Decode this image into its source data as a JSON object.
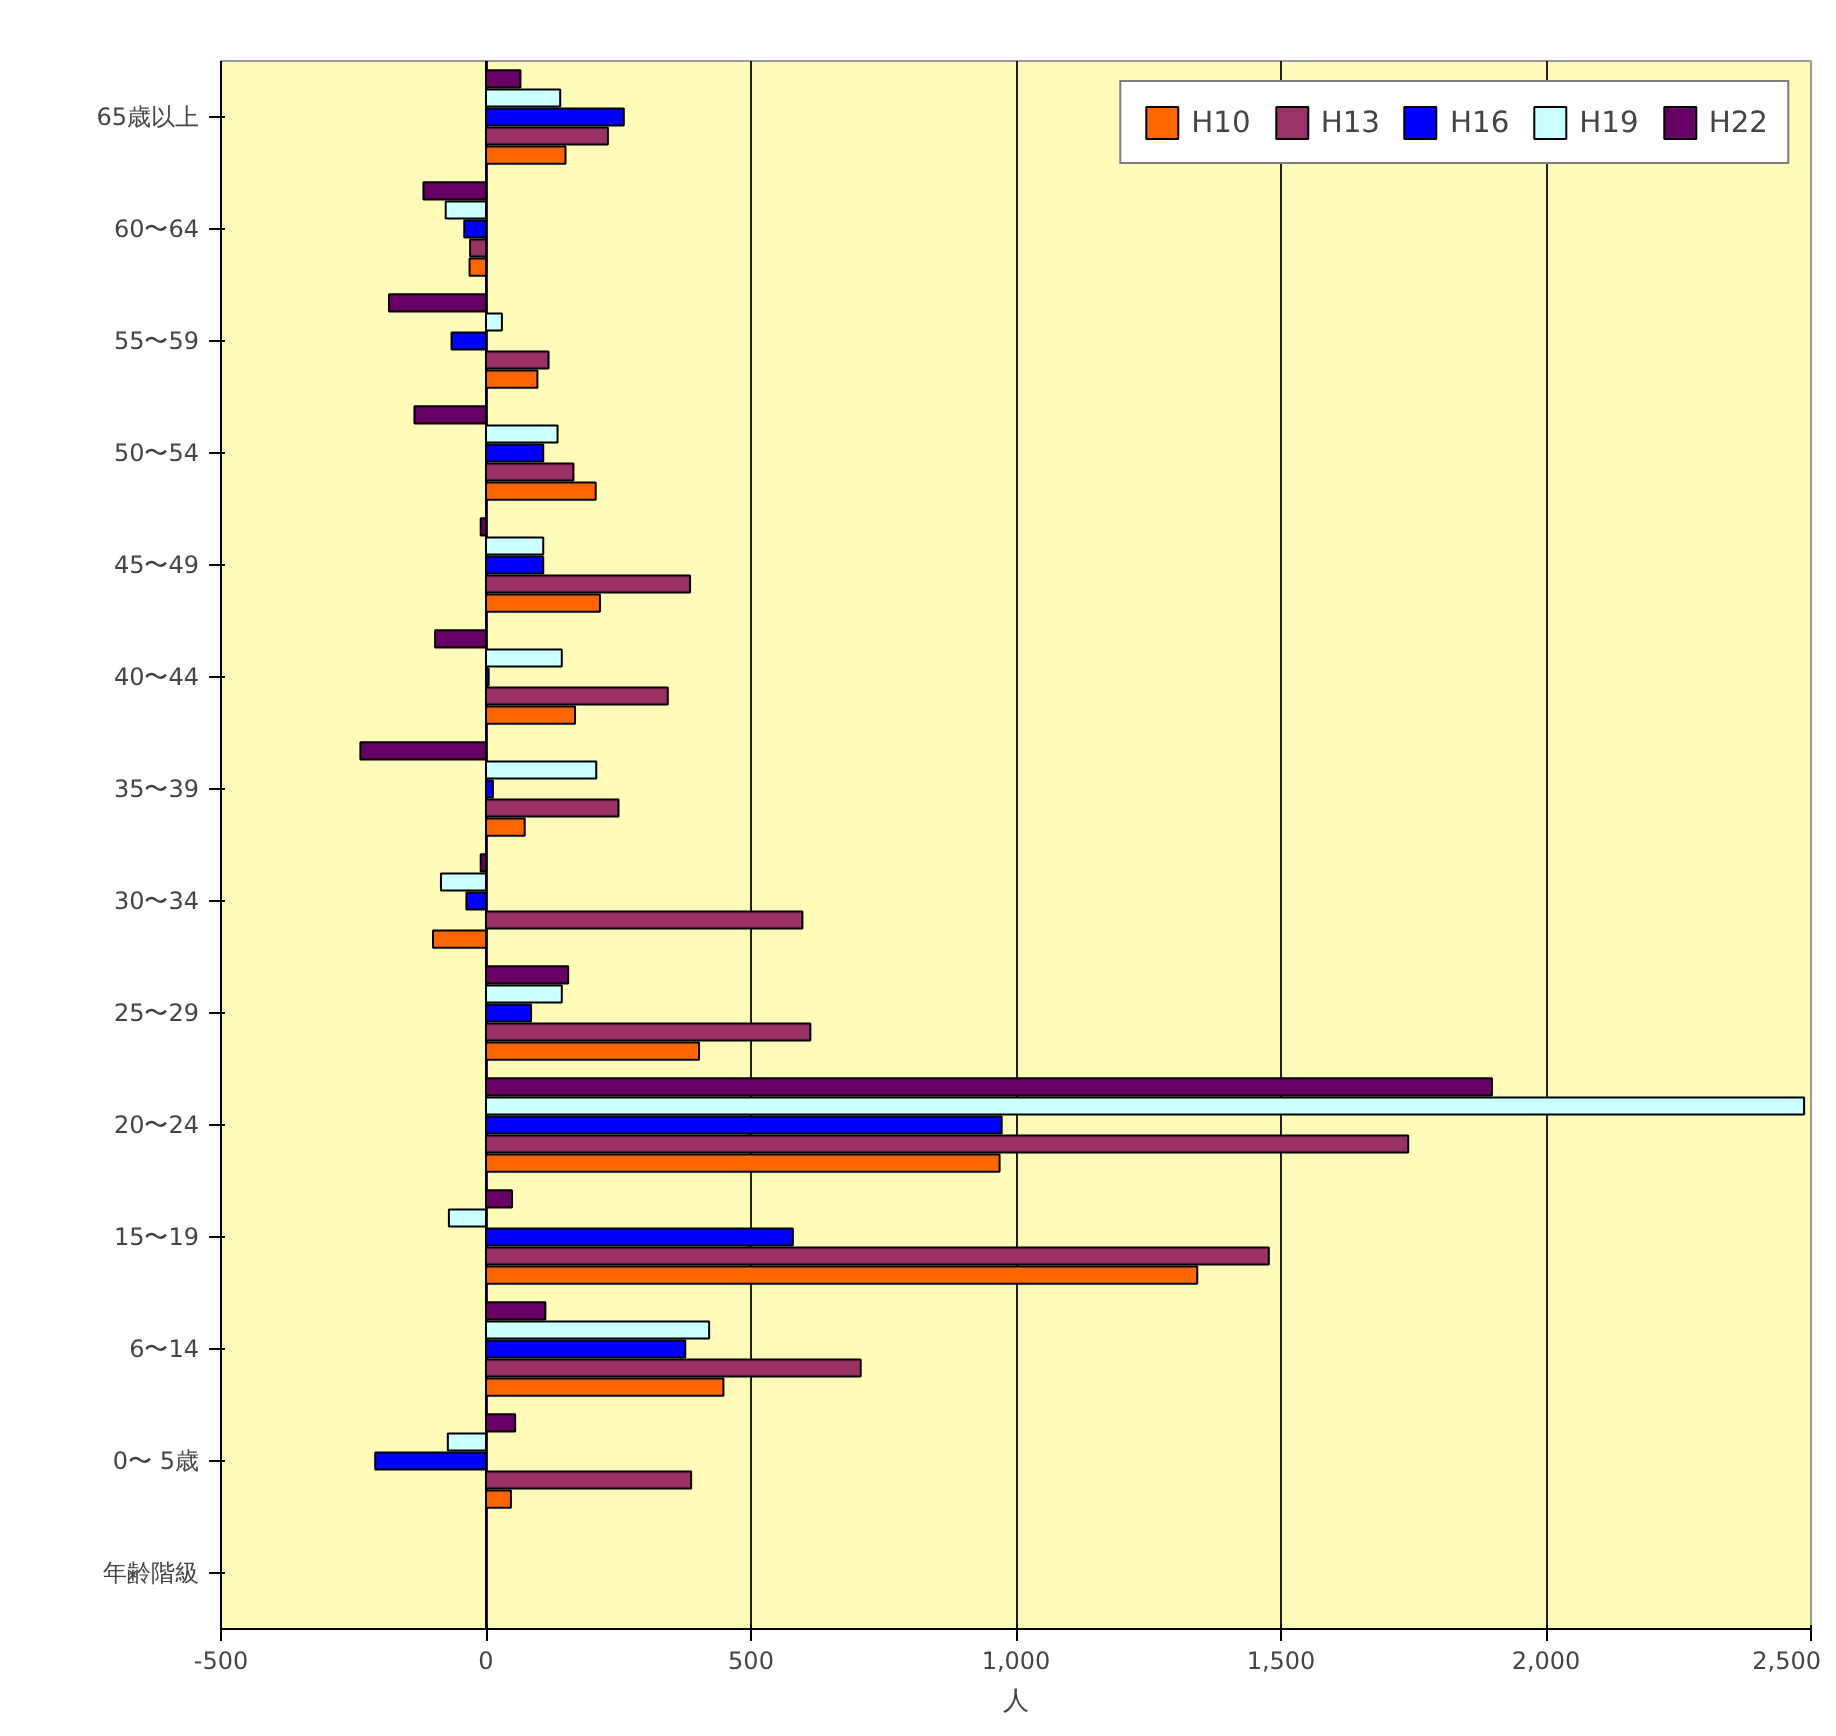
{
  "chart_data": {
    "type": "bar",
    "orientation": "horizontal",
    "xlabel": "人",
    "categories": [
      "65歳以上",
      "60〜64",
      "55〜59",
      "50〜54",
      "45〜49",
      "40〜44",
      "35〜39",
      "30〜34",
      "25〜29",
      "20〜24",
      "15〜19",
      "6〜14",
      "0〜 5歳",
      "年齢階級"
    ],
    "series": [
      {
        "name": "H10",
        "color": "#ff6600",
        "values": [
          150,
          -31,
          97,
          207,
          215,
          168,
          73,
          -100,
          402,
          969,
          1342,
          448,
          47,
          null
        ]
      },
      {
        "name": "H13",
        "color": "#993366",
        "values": [
          230,
          -30,
          118,
          165,
          385,
          343,
          250,
          597,
          612,
          1740,
          1477,
          707,
          387,
          null
        ]
      },
      {
        "name": "H16",
        "color": "#0000ff",
        "values": [
          260,
          -41,
          -65,
          108,
          108,
          5,
          13,
          -37,
          85,
          973,
          579,
          376,
          -209,
          null
        ]
      },
      {
        "name": "H19",
        "color": "#ccffff",
        "values": [
          140,
          -76,
          30,
          135,
          108,
          143,
          208,
          -85,
          143,
          2487,
          -70,
          421,
          -72,
          null
        ]
      },
      {
        "name": "H22",
        "color": "#660066",
        "values": [
          65,
          -118,
          -183,
          -135,
          -10,
          -96,
          -237,
          -10,
          155,
          1898,
          49,
          112,
          55,
          null
        ]
      }
    ],
    "xlim": [
      -500,
      2500
    ],
    "xticks": [
      {
        "value": -500,
        "label": "-500"
      },
      0,
      500,
      {
        "value": 1000,
        "label": "1,000"
      },
      {
        "value": 1500,
        "label": "1,500"
      },
      {
        "value": 2000,
        "label": "2,000"
      },
      {
        "value": 2500,
        "label": "2,500"
      }
    ],
    "grid": "x",
    "legend": "top right"
  }
}
